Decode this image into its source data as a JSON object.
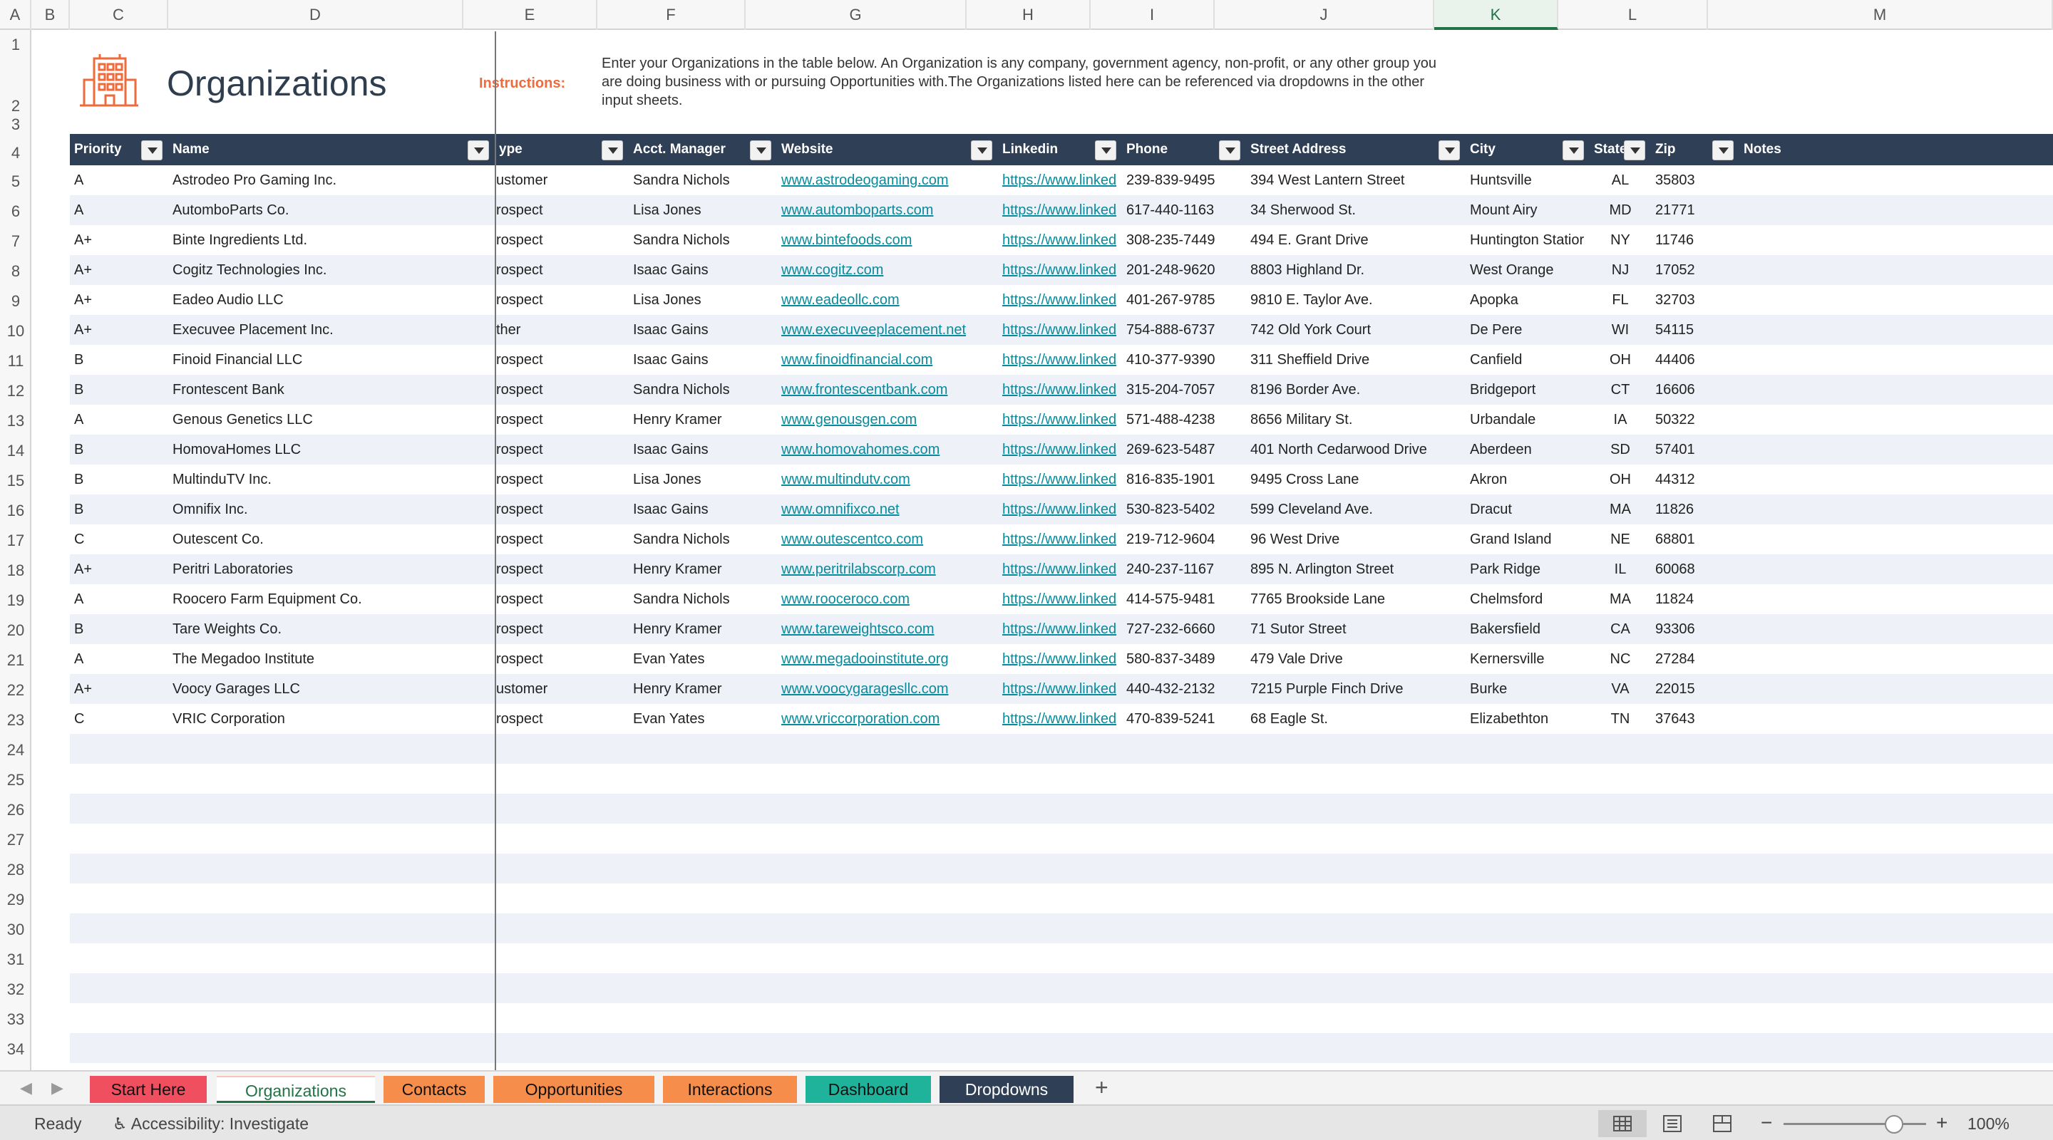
{
  "columns": [
    "A",
    "B",
    "C",
    "D",
    "E",
    "F",
    "G",
    "H",
    "I",
    "J",
    "K",
    "L",
    "M"
  ],
  "row_numbers": [
    "1",
    "2",
    "3",
    "4",
    "5",
    "6",
    "7",
    "8",
    "9",
    "10",
    "11",
    "12",
    "13",
    "14",
    "15",
    "16",
    "17",
    "18",
    "19",
    "20",
    "21",
    "22",
    "23",
    "24",
    "25",
    "26",
    "27",
    "28",
    "29",
    "30",
    "31",
    "32",
    "33",
    "34"
  ],
  "header_block": {
    "title": "Organizations",
    "instructions_label": "Instructions:",
    "instructions_text": "Enter your Organizations in the table below. An Organization is any company, government agency, non-profit, or any other group you are doing business with or pursuing Opportunities with.The Organizations listed here can be referenced via dropdowns in the other input sheets."
  },
  "table": {
    "headers": [
      "Priority",
      "Name",
      "ype",
      "Acct. Manager",
      "Website",
      "Linkedin",
      "Phone",
      "Street Address",
      "City",
      "State",
      "Zip",
      "Notes"
    ],
    "rows": [
      [
        "A",
        "Astrodeo Pro Gaming Inc.",
        "ustomer",
        "Sandra Nichols",
        "www.astrodeogaming.com",
        "https://www.linked",
        "239-839-9495",
        "394 West Lantern Street",
        "Huntsville",
        "AL",
        "35803"
      ],
      [
        "A",
        "AutomboParts Co.",
        "rospect",
        "Lisa Jones",
        "www.automboparts.com",
        "https://www.linked",
        "617-440-1163",
        "34 Sherwood St.",
        "Mount Airy",
        "MD",
        "21771"
      ],
      [
        "A+",
        "Binte Ingredients Ltd.",
        "rospect",
        "Sandra Nichols",
        "www.bintefoods.com",
        "https://www.linked",
        "308-235-7449",
        "494 E. Grant Drive",
        "Huntington Statior",
        "NY",
        "11746"
      ],
      [
        "A+",
        "Cogitz Technologies Inc.",
        "rospect",
        "Isaac Gains",
        "www.cogitz.com",
        "https://www.linked",
        "201-248-9620",
        "8803 Highland Dr.",
        "West Orange",
        "NJ",
        "17052"
      ],
      [
        "A+",
        "Eadeo Audio LLC",
        "rospect",
        "Lisa Jones",
        "www.eadeollc.com",
        "https://www.linked",
        "401-267-9785",
        "9810 E. Taylor Ave.",
        "Apopka",
        "FL",
        "32703"
      ],
      [
        "A+",
        "Execuvee Placement Inc.",
        "ther",
        "Isaac Gains",
        "www.execuveeplacement.net",
        "https://www.linked",
        "754-888-6737",
        "742 Old York Court",
        "De Pere",
        "WI",
        "54115"
      ],
      [
        "B",
        "Finoid Financial LLC",
        "rospect",
        "Isaac Gains",
        "www.finoidfinancial.com",
        "https://www.linked",
        "410-377-9390",
        "311 Sheffield Drive",
        "Canfield",
        "OH",
        "44406"
      ],
      [
        "B",
        "Frontescent Bank",
        "rospect",
        "Sandra Nichols",
        "www.frontescentbank.com",
        "https://www.linked",
        "315-204-7057",
        "8196 Border Ave.",
        "Bridgeport",
        "CT",
        "16606"
      ],
      [
        "A",
        "Genous Genetics LLC",
        "rospect",
        "Henry Kramer",
        "www.genousgen.com",
        "https://www.linked",
        "571-488-4238",
        "8656 Military St.",
        "Urbandale",
        "IA",
        "50322"
      ],
      [
        "B",
        "HomovaHomes LLC",
        "rospect",
        "Isaac Gains",
        "www.homovahomes.com",
        "https://www.linked",
        "269-623-5487",
        "401 North Cedarwood Drive",
        "Aberdeen",
        "SD",
        "57401"
      ],
      [
        "B",
        "MultinduTV Inc.",
        "rospect",
        "Lisa Jones",
        "www.multindutv.com",
        "https://www.linked",
        "816-835-1901",
        "9495 Cross Lane",
        "Akron",
        "OH",
        "44312"
      ],
      [
        "B",
        "Omnifix Inc.",
        "rospect",
        "Isaac Gains",
        "www.omnifixco.net",
        "https://www.linked",
        "530-823-5402",
        "599 Cleveland Ave.",
        "Dracut",
        "MA",
        "11826"
      ],
      [
        "C",
        "Outescent Co.",
        "rospect",
        "Sandra Nichols",
        "www.outescentco.com",
        "https://www.linked",
        "219-712-9604",
        "96 West Drive",
        "Grand Island",
        "NE",
        "68801"
      ],
      [
        "A+",
        "Peritri Laboratories",
        "rospect",
        "Henry Kramer",
        "www.peritrilabscorp.com",
        "https://www.linked",
        "240-237-1167",
        "895 N. Arlington Street",
        "Park Ridge",
        "IL",
        "60068"
      ],
      [
        "A",
        "Roocero Farm Equipment Co.",
        "rospect",
        "Sandra Nichols",
        "www.rooceroco.com",
        "https://www.linked",
        "414-575-9481",
        "7765 Brookside Lane",
        "Chelmsford",
        "MA",
        "11824"
      ],
      [
        "B",
        "Tare Weights Co.",
        "rospect",
        "Henry Kramer",
        "www.tareweightsco.com",
        "https://www.linked",
        "727-232-6660",
        "71 Sutor Street",
        "Bakersfield",
        "CA",
        "93306"
      ],
      [
        "A",
        "The Megadoo Institute",
        "rospect",
        "Evan Yates",
        "www.megadooinstitute.org",
        "https://www.linked",
        "580-837-3489",
        "479 Vale Drive",
        "Kernersville",
        "NC",
        "27284"
      ],
      [
        "A+",
        "Voocy Garages LLC",
        "ustomer",
        "Henry Kramer",
        "www.voocygaragesllc.com",
        "https://www.linked",
        "440-432-2132",
        "7215 Purple Finch Drive",
        "Burke",
        "VA",
        "22015"
      ],
      [
        "C",
        "VRIC Corporation",
        "rospect",
        "Evan Yates",
        "www.vriccorporation.com",
        "https://www.linked",
        "470-839-5241",
        "68 Eagle St.",
        "Elizabethton",
        "TN",
        "37643"
      ]
    ]
  },
  "sheet_tabs": [
    {
      "label": "Start Here",
      "color": "#ef4f5f",
      "text_color": "#111111"
    },
    {
      "label": "Organizations",
      "color": "#ffffff",
      "text_color": "#217346",
      "active": true
    },
    {
      "label": "Contacts",
      "color": "#f68d4b",
      "text_color": "#111111"
    },
    {
      "label": "Opportunities",
      "color": "#f68d4b",
      "text_color": "#111111"
    },
    {
      "label": "Interactions",
      "color": "#f68d4b",
      "text_color": "#111111"
    },
    {
      "label": "Dashboard",
      "color": "#1fb39b",
      "text_color": "#111111"
    },
    {
      "label": "Dropdowns",
      "color": "#2e3f56",
      "text_color": "#ffffff"
    }
  ],
  "add_sheet_label": "+",
  "status": {
    "ready": "Ready",
    "accessibility": "Accessibility: Investigate",
    "zoom_minus": "−",
    "zoom_plus": "+",
    "zoom": "100%",
    "zoom_value": 1.0
  },
  "colors": {
    "header_bg": "#2e3f56",
    "accent": "#ef6b3c",
    "link": "#0b8a9c",
    "band": "#eef1f7",
    "selected_column": "K"
  }
}
